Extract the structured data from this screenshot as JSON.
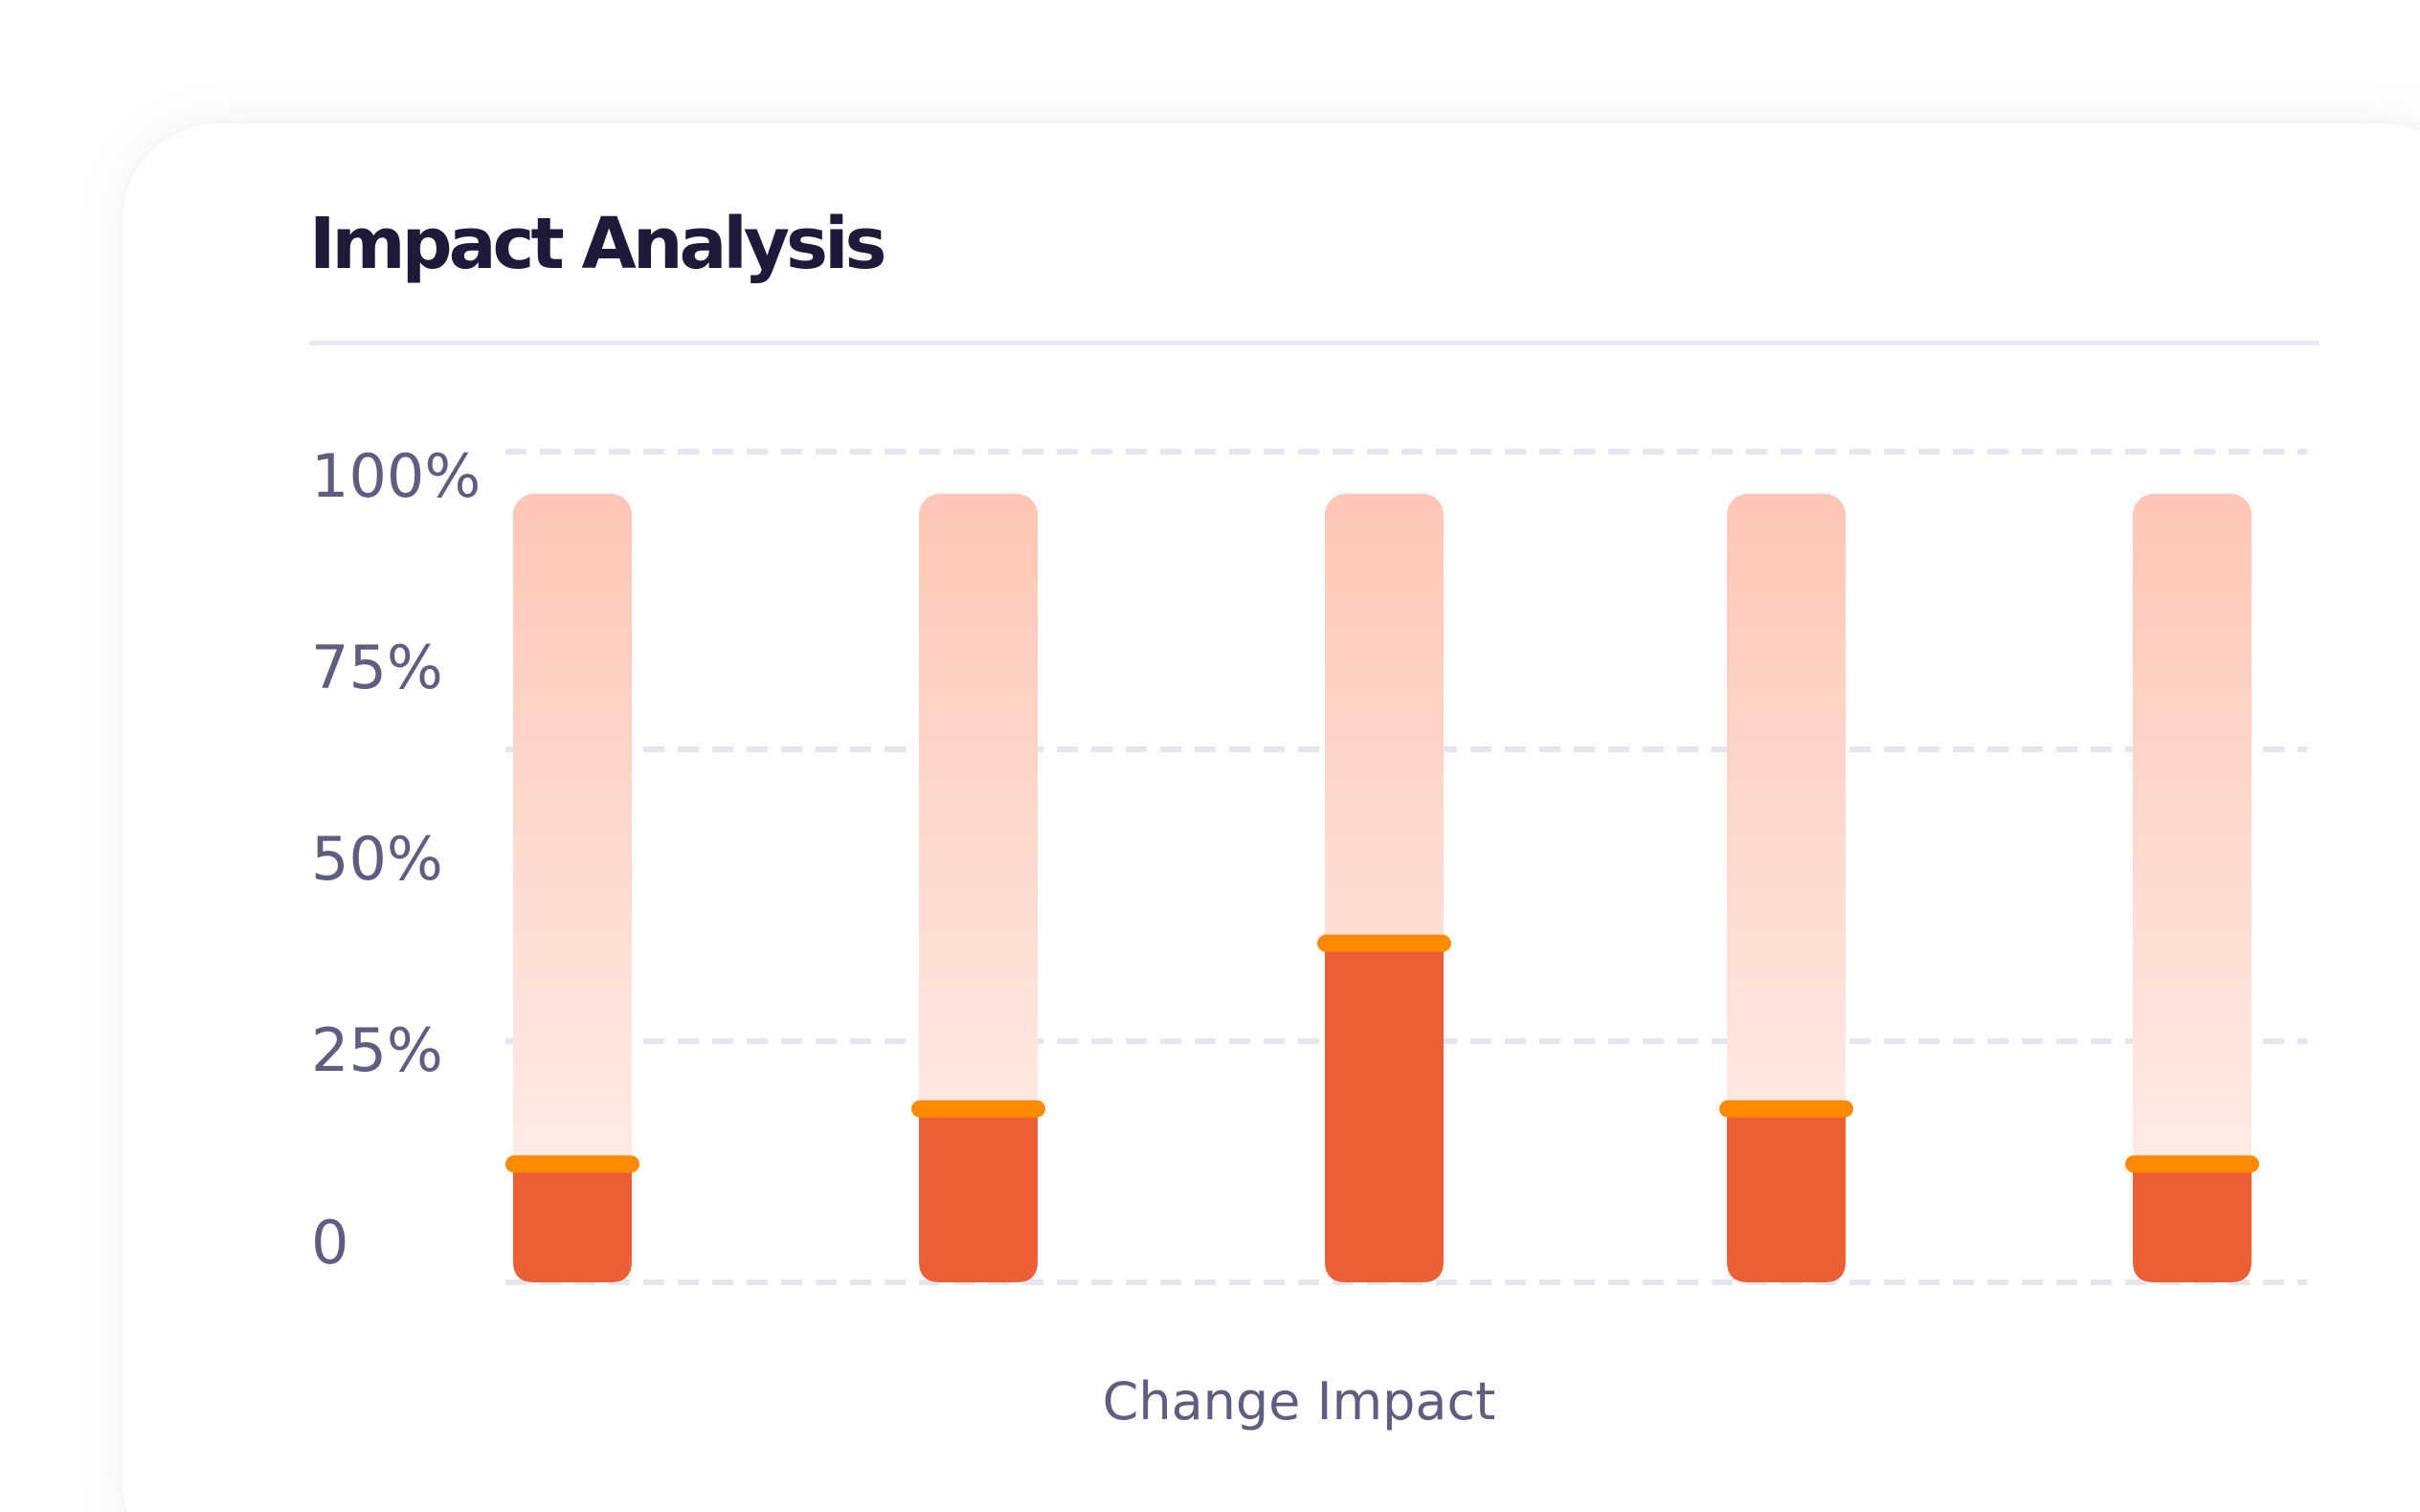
{
  "card": {
    "title": "Impact Analysis"
  },
  "chart_data": {
    "type": "bar",
    "categories": [
      "",
      "",
      "",
      "",
      ""
    ],
    "values": [
      15,
      22,
      43,
      22,
      15
    ],
    "ylim": [
      0,
      100
    ],
    "y_tick_labels": [
      "0",
      "25%",
      "50%",
      "75%",
      "100%"
    ],
    "xlabel": "Change Impact",
    "ylabel": "",
    "title": "Impact Analysis",
    "grid": true,
    "legend": "none",
    "colors": {
      "bar_fill": "#ec5e36",
      "bar_cap": "#ff8a00",
      "track_top": "#fec6b6",
      "track_bottom": "#fff1ed",
      "grid": "#e6e6ee",
      "axis_text": "#5f5d80",
      "title": "#1d1a3a"
    }
  }
}
